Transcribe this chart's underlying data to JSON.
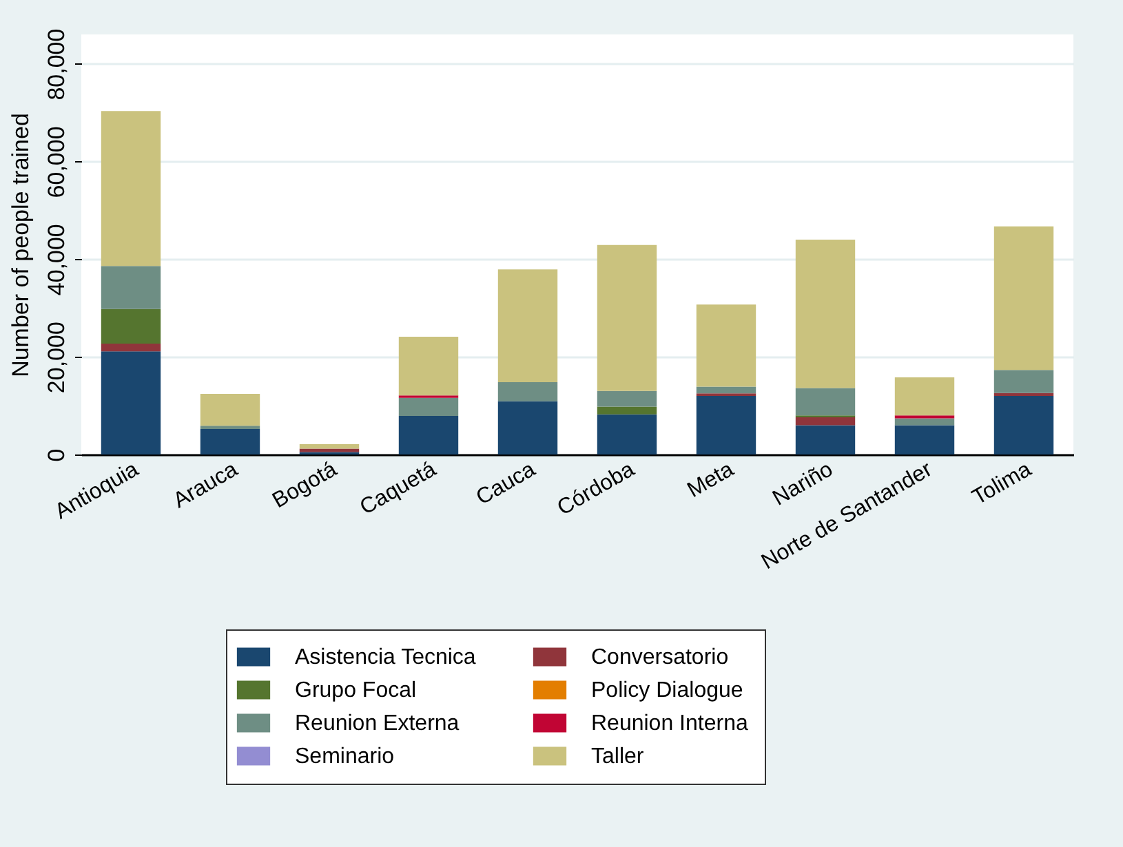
{
  "chart_data": {
    "type": "bar",
    "stacked": true,
    "ylabel": "Number of people trained",
    "categories": [
      "Antioquia",
      "Arauca",
      "Bogotá",
      "Caquetá",
      "Cauca",
      "Córdoba",
      "Meta",
      "Nariño",
      "Norte de Santander",
      "Tolima"
    ],
    "series": [
      {
        "name": "Asistencia Tecnica",
        "color": "#1a476f",
        "values": [
          21100,
          5200,
          500,
          7900,
          10900,
          8200,
          12000,
          6000,
          6000,
          12000
        ]
      },
      {
        "name": "Conversatorio",
        "color": "#90353b",
        "values": [
          1600,
          0,
          700,
          0,
          0,
          0,
          500,
          1600,
          0,
          600
        ]
      },
      {
        "name": "Grupo Focal",
        "color": "#55752f",
        "values": [
          7100,
          0,
          0,
          0,
          0,
          1600,
          0,
          400,
          0,
          0
        ]
      },
      {
        "name": "Policy Dialogue",
        "color": "#e37e00",
        "values": [
          0,
          0,
          0,
          0,
          0,
          0,
          0,
          0,
          0,
          0
        ]
      },
      {
        "name": "Reunion Externa",
        "color": "#6e8e84",
        "values": [
          8800,
          700,
          0,
          3700,
          3900,
          3200,
          1400,
          5600,
          1400,
          4700
        ]
      },
      {
        "name": "Reunion Interna",
        "color": "#c10534",
        "values": [
          0,
          0,
          0,
          500,
          0,
          0,
          0,
          0,
          600,
          0
        ]
      },
      {
        "name": "Seminario",
        "color": "#938dd2",
        "values": [
          0,
          0,
          0,
          0,
          0,
          0,
          0,
          0,
          0,
          0
        ]
      },
      {
        "name": "Taller",
        "color": "#cac27e",
        "values": [
          31700,
          6500,
          900,
          12000,
          23100,
          29900,
          16800,
          30400,
          7800,
          29400
        ]
      }
    ],
    "ylim": [
      0,
      86000
    ],
    "yticks": [
      0,
      {
        "value": 20000,
        "label": "20,000"
      },
      {
        "value": 40000,
        "label": "40,000"
      },
      {
        "value": 60000,
        "label": "60,000"
      },
      {
        "value": 80000,
        "label": "80,000"
      }
    ],
    "grid": "y",
    "legend": "bottom"
  }
}
